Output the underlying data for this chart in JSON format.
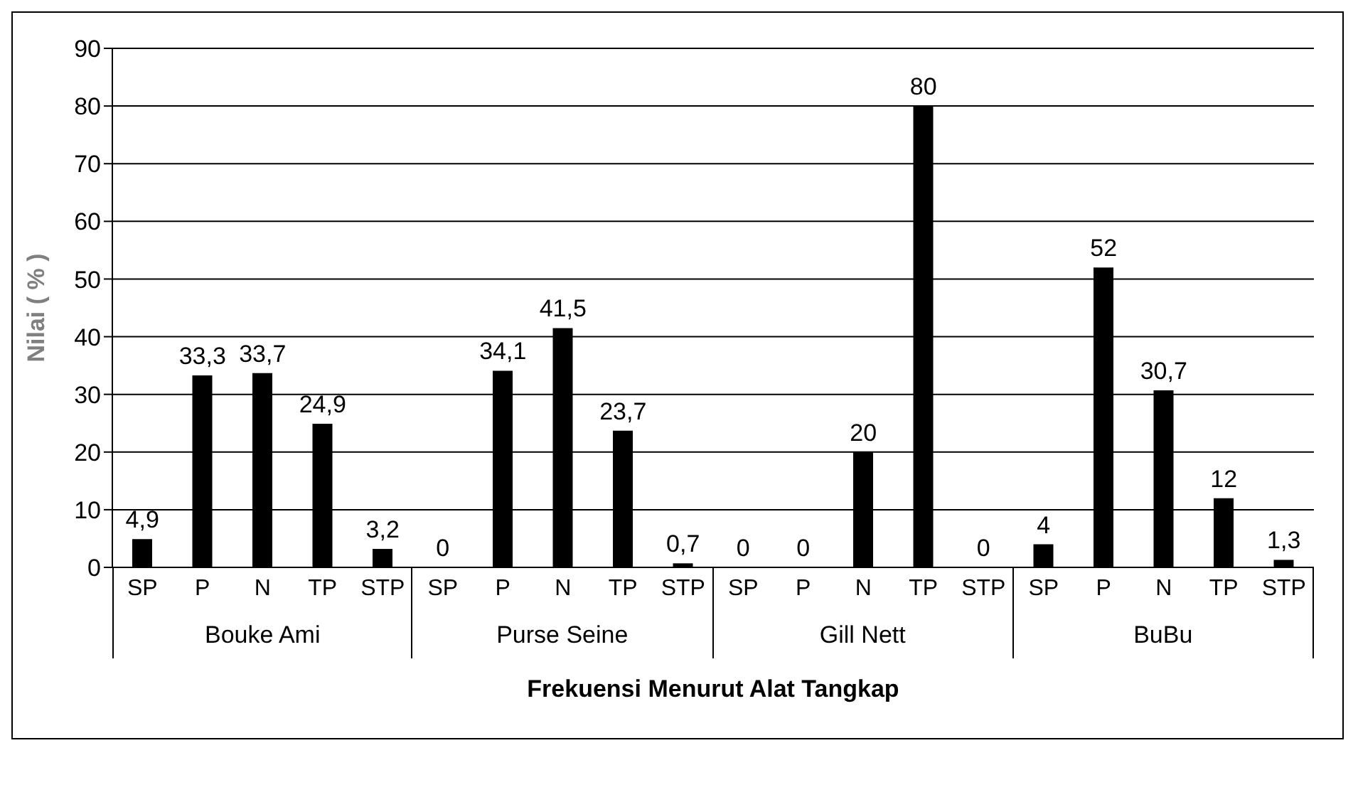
{
  "chart_data": {
    "type": "bar",
    "xlabel": "Frekuensi Menurut Alat Tangkap",
    "ylabel": "Nilai ( % )",
    "categories": [
      "SP",
      "P",
      "N",
      "TP",
      "STP",
      "SP",
      "P",
      "N",
      "TP",
      "STP",
      "SP",
      "P",
      "N",
      "TP",
      "STP",
      "SP",
      "P",
      "N",
      "TP",
      "STP"
    ],
    "values": [
      4.9,
      33.3,
      33.7,
      24.9,
      3.2,
      0,
      34.1,
      41.5,
      23.7,
      0.7,
      0,
      0,
      20,
      80,
      0,
      4,
      52,
      30.7,
      12,
      1.3
    ],
    "value_labels": [
      "4,9",
      "33,3",
      "33,7",
      "24,9",
      "3,2",
      "0",
      "34,1",
      "41,5",
      "23,7",
      "0,7",
      "0",
      "0",
      "20",
      "80",
      "0",
      "4",
      "52",
      "30,7",
      "12",
      "1,3"
    ],
    "color": "#000000",
    "ylim": [
      0,
      90
    ],
    "yticks": [
      0,
      10,
      20,
      30,
      40,
      50,
      60,
      70,
      80,
      90
    ],
    "grid": "y",
    "annotations": [
      "Bouke Ami",
      "Purse Seine",
      "Gill Nett",
      "BuBu"
    ]
  }
}
